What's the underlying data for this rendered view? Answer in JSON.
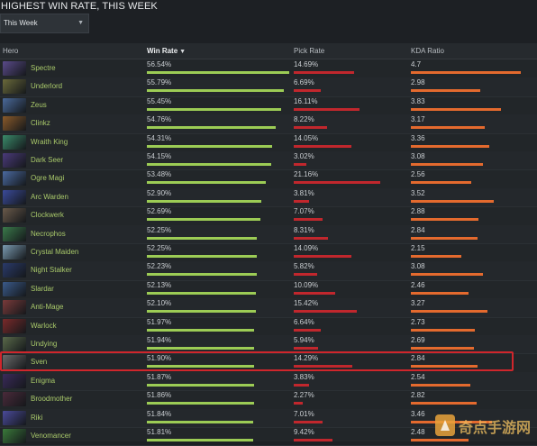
{
  "page": {
    "title": "HIGHEST WIN RATE, THIS WEEK",
    "period_select": {
      "value": "This Week",
      "icon": "chevron-down-icon"
    }
  },
  "columns": {
    "hero": "Hero",
    "win_rate": "Win Rate",
    "pick_rate": "Pick Rate",
    "kda_ratio": "KDA Ratio"
  },
  "colors": {
    "win_bar": "#9ccc55",
    "pick_bar": "#c1272d",
    "kda_bar": "#e46a2e",
    "hero_name": "#a9c96a",
    "highlight": "#d0262c"
  },
  "rows": [
    {
      "hero": "Spectre",
      "win": "56.54%",
      "pick": "14.69%",
      "kda": "4.7",
      "portrait": "#5a4a8a"
    },
    {
      "hero": "Underlord",
      "win": "55.79%",
      "pick": "6.69%",
      "kda": "2.98",
      "portrait": "#6b6a3a"
    },
    {
      "hero": "Zeus",
      "win": "55.45%",
      "pick": "16.11%",
      "kda": "3.83",
      "portrait": "#4a6a9a"
    },
    {
      "hero": "Clinkz",
      "win": "54.76%",
      "pick": "8.22%",
      "kda": "3.17",
      "portrait": "#8a5a2a"
    },
    {
      "hero": "Wraith King",
      "win": "54.31%",
      "pick": "14.05%",
      "kda": "3.36",
      "portrait": "#3a8a6a"
    },
    {
      "hero": "Dark Seer",
      "win": "54.15%",
      "pick": "3.02%",
      "kda": "3.08",
      "portrait": "#4a3a7a"
    },
    {
      "hero": "Ogre Magi",
      "win": "53.48%",
      "pick": "21.16%",
      "kda": "2.56",
      "portrait": "#4a6aa0"
    },
    {
      "hero": "Arc Warden",
      "win": "52.90%",
      "pick": "3.81%",
      "kda": "3.52",
      "portrait": "#3a4a9a"
    },
    {
      "hero": "Clockwerk",
      "win": "52.69%",
      "pick": "7.07%",
      "kda": "2.88",
      "portrait": "#6a5a4a"
    },
    {
      "hero": "Necrophos",
      "win": "52.25%",
      "pick": "8.31%",
      "kda": "2.84",
      "portrait": "#3a7a4a"
    },
    {
      "hero": "Crystal Maiden",
      "win": "52.25%",
      "pick": "14.09%",
      "kda": "2.15",
      "portrait": "#7a9ab0"
    },
    {
      "hero": "Night Stalker",
      "win": "52.23%",
      "pick": "5.82%",
      "kda": "3.08",
      "portrait": "#2a3a6a"
    },
    {
      "hero": "Slardar",
      "win": "52.13%",
      "pick": "10.09%",
      "kda": "2.46",
      "portrait": "#3a5a8a"
    },
    {
      "hero": "Anti-Mage",
      "win": "52.10%",
      "pick": "15.42%",
      "kda": "3.27",
      "portrait": "#7a3a3a"
    },
    {
      "hero": "Warlock",
      "win": "51.97%",
      "pick": "6.64%",
      "kda": "2.73",
      "portrait": "#7a2a2a"
    },
    {
      "hero": "Undying",
      "win": "51.94%",
      "pick": "5.94%",
      "kda": "2.69",
      "portrait": "#5a6a4a"
    },
    {
      "hero": "Sven",
      "win": "51.90%",
      "pick": "14.29%",
      "kda": "2.84",
      "portrait": "#6a6a6a"
    },
    {
      "hero": "Enigma",
      "win": "51.87%",
      "pick": "3.83%",
      "kda": "2.54",
      "portrait": "#3a2a5a"
    },
    {
      "hero": "Broodmother",
      "win": "51.86%",
      "pick": "2.27%",
      "kda": "2.82",
      "portrait": "#4a2a3a"
    },
    {
      "hero": "Riki",
      "win": "51.84%",
      "pick": "7.01%",
      "kda": "3.46",
      "portrait": "#4a4a9a"
    },
    {
      "hero": "Venomancer",
      "win": "51.81%",
      "pick": "9.42%",
      "kda": "2.48",
      "portrait": "#3a7a3a"
    }
  ],
  "highlighted_hero": "Sven"
}
